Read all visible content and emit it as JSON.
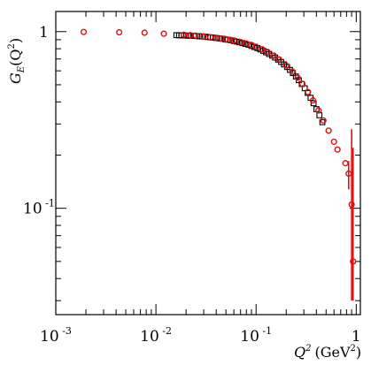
{
  "chart_data": {
    "type": "scatter",
    "title": "",
    "xlabel_main": "Q",
    "xlabel_sup": "2",
    "xlabel_unit_open": "(GeV",
    "xlabel_unit_sup": "2",
    "xlabel_unit_close": ")",
    "ylabel_main": "G",
    "ylabel_sub": "E",
    "ylabel_arg_open": "(Q",
    "ylabel_arg_sup": "2",
    "ylabel_arg_close": ")",
    "xscale": "log",
    "yscale": "log",
    "xlim": [
      0.001,
      1.1
    ],
    "ylim": [
      0.025,
      1.3
    ],
    "grid": false,
    "legend": false,
    "xtick_labels": [
      {
        "value": 0.001,
        "base": "10",
        "exp": "-3"
      },
      {
        "value": 0.01,
        "base": "10",
        "exp": "-2"
      },
      {
        "value": 0.1,
        "base": "10",
        "exp": "-1"
      },
      {
        "value": 1,
        "base": "1",
        "exp": ""
      }
    ],
    "ytick_labels": [
      {
        "value": 0.1,
        "base": "10",
        "exp": "-1"
      },
      {
        "value": 1,
        "base": "1",
        "exp": ""
      }
    ],
    "series": [
      {
        "marker": "square",
        "color": "#000000",
        "points": [
          [
            0.016,
            0.955
          ],
          [
            0.017,
            0.953
          ],
          [
            0.018,
            0.952
          ],
          [
            0.019,
            0.951
          ],
          [
            0.02,
            0.95
          ],
          [
            0.021,
            0.949
          ],
          [
            0.022,
            0.948
          ],
          [
            0.024,
            0.946
          ],
          [
            0.025,
            0.944
          ],
          [
            0.027,
            0.941
          ],
          [
            0.029,
            0.939
          ],
          [
            0.031,
            0.936
          ],
          [
            0.033,
            0.932
          ],
          [
            0.035,
            0.928
          ],
          [
            0.037,
            0.925
          ],
          [
            0.04,
            0.92
          ],
          [
            0.043,
            0.915
          ],
          [
            0.046,
            0.911
          ],
          [
            0.049,
            0.905
          ],
          [
            0.052,
            0.9
          ],
          [
            0.056,
            0.893
          ],
          [
            0.06,
            0.885
          ],
          [
            0.064,
            0.878
          ],
          [
            0.068,
            0.87
          ],
          [
            0.073,
            0.861
          ],
          [
            0.078,
            0.852
          ],
          [
            0.084,
            0.842
          ],
          [
            0.09,
            0.83
          ],
          [
            0.096,
            0.818
          ],
          [
            0.103,
            0.807
          ],
          [
            0.11,
            0.793
          ],
          [
            0.118,
            0.778
          ],
          [
            0.126,
            0.763
          ],
          [
            0.135,
            0.747
          ],
          [
            0.145,
            0.731
          ],
          [
            0.155,
            0.713
          ],
          [
            0.166,
            0.694
          ],
          [
            0.178,
            0.673
          ],
          [
            0.19,
            0.652
          ],
          [
            0.204,
            0.63
          ],
          [
            0.218,
            0.607
          ],
          [
            0.233,
            0.583
          ],
          [
            0.25,
            0.557
          ],
          [
            0.267,
            0.531
          ],
          [
            0.286,
            0.505
          ],
          [
            0.306,
            0.478
          ],
          [
            0.327,
            0.45
          ],
          [
            0.35,
            0.422
          ],
          [
            0.375,
            0.393
          ],
          [
            0.401,
            0.364
          ],
          [
            0.429,
            0.336
          ],
          [
            0.459,
            0.307
          ]
        ]
      },
      {
        "marker": "circle",
        "color": "#dd1111",
        "points": [
          [
            0.0019,
            0.995
          ],
          [
            0.0043,
            0.991
          ],
          [
            0.0077,
            0.986
          ],
          [
            0.012,
            0.973
          ],
          [
            0.019,
            0.96
          ],
          [
            0.022,
            0.955
          ],
          [
            0.025,
            0.95
          ],
          [
            0.03,
            0.94
          ],
          [
            0.035,
            0.93
          ],
          [
            0.04,
            0.922
          ],
          [
            0.045,
            0.915
          ],
          [
            0.05,
            0.907
          ],
          [
            0.055,
            0.899
          ],
          [
            0.06,
            0.89
          ],
          [
            0.07,
            0.873
          ],
          [
            0.08,
            0.857
          ],
          [
            0.09,
            0.84
          ],
          [
            0.1,
            0.822
          ],
          [
            0.115,
            0.795
          ],
          [
            0.13,
            0.768
          ],
          [
            0.15,
            0.731
          ],
          [
            0.17,
            0.696
          ],
          [
            0.2,
            0.643
          ],
          [
            0.23,
            0.594
          ],
          [
            0.26,
            0.548
          ],
          [
            0.29,
            0.506
          ],
          [
            0.33,
            0.455
          ],
          [
            0.37,
            0.408
          ],
          [
            0.42,
            0.358
          ],
          [
            0.47,
            0.314
          ],
          [
            0.53,
            0.275
          ],
          [
            0.6,
            0.238
          ],
          [
            0.65,
            0.215
          ],
          {
            "x": 0.78,
            "y": 0.18
          },
          {
            "x": 0.84,
            "y": 0.157,
            "yerr_low": 0.128,
            "yerr_high": 0.185
          },
          {
            "x": 0.9,
            "y": 0.105,
            "yerr_low": 0.03,
            "yerr_high": 0.28
          },
          {
            "x": 0.93,
            "y": 0.05,
            "yerr_low": 0.03,
            "yerr_high": 0.22
          }
        ]
      }
    ]
  }
}
